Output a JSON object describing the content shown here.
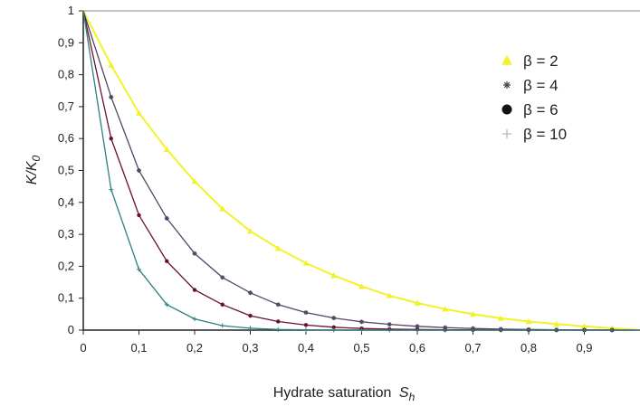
{
  "chart_data": {
    "type": "line",
    "xlabel": "Hydrate saturation",
    "xlabel_sub": "h",
    "xlabel_var": "S",
    "ylabel_num": "K/K",
    "ylabel_sub": "0",
    "xlim": [
      0,
      1
    ],
    "ylim": [
      0,
      1
    ],
    "x_ticks": [
      "0",
      "0,1",
      "0,2",
      "0,3",
      "0,4",
      "0,5",
      "0,6",
      "0,7",
      "0,8",
      "0,9"
    ],
    "y_ticks": [
      "0",
      "0,1",
      "0,2",
      "0,3",
      "0,4",
      "0,5",
      "0,6",
      "0,7",
      "0,8",
      "0,9",
      "1"
    ],
    "x": [
      0,
      0.05,
      0.1,
      0.15,
      0.2,
      0.25,
      0.3,
      0.35,
      0.4,
      0.45,
      0.5,
      0.55,
      0.6,
      0.65,
      0.7,
      0.75,
      0.8,
      0.85,
      0.9,
      0.95,
      1.0
    ],
    "legend_position": "top-right",
    "series": [
      {
        "name": "β = 2",
        "color": "#f2f22a",
        "marker": "triangle",
        "values": [
          1,
          0.83,
          0.68,
          0.566,
          0.466,
          0.38,
          0.31,
          0.256,
          0.21,
          0.171,
          0.137,
          0.108,
          0.085,
          0.066,
          0.05,
          0.037,
          0.027,
          0.019,
          0.012,
          0.006,
          0
        ]
      },
      {
        "name": "β = 4",
        "color": "#554466",
        "marker": "star",
        "values": [
          1,
          0.73,
          0.5,
          0.35,
          0.24,
          0.165,
          0.117,
          0.08,
          0.055,
          0.038,
          0.026,
          0.018,
          0.012,
          0.008,
          0.005,
          0.003,
          0.002,
          0.001,
          0.0005,
          0.0002,
          0
        ]
      },
      {
        "name": "β = 6",
        "color": "#6a1030",
        "marker": "circle",
        "values": [
          1,
          0.6,
          0.36,
          0.216,
          0.126,
          0.08,
          0.045,
          0.027,
          0.016,
          0.009,
          0.005,
          0.003,
          0.002,
          0.001,
          0.0005,
          0.0003,
          0.0001,
          0,
          0,
          0,
          0
        ]
      },
      {
        "name": "β = 10",
        "color": "#2f8080",
        "marker": "plus",
        "values": [
          1,
          0.44,
          0.19,
          0.08,
          0.035,
          0.014,
          0.006,
          0.002,
          0.001,
          0,
          0,
          0,
          0,
          0,
          0,
          0,
          0,
          0,
          0,
          0,
          0
        ]
      }
    ]
  }
}
